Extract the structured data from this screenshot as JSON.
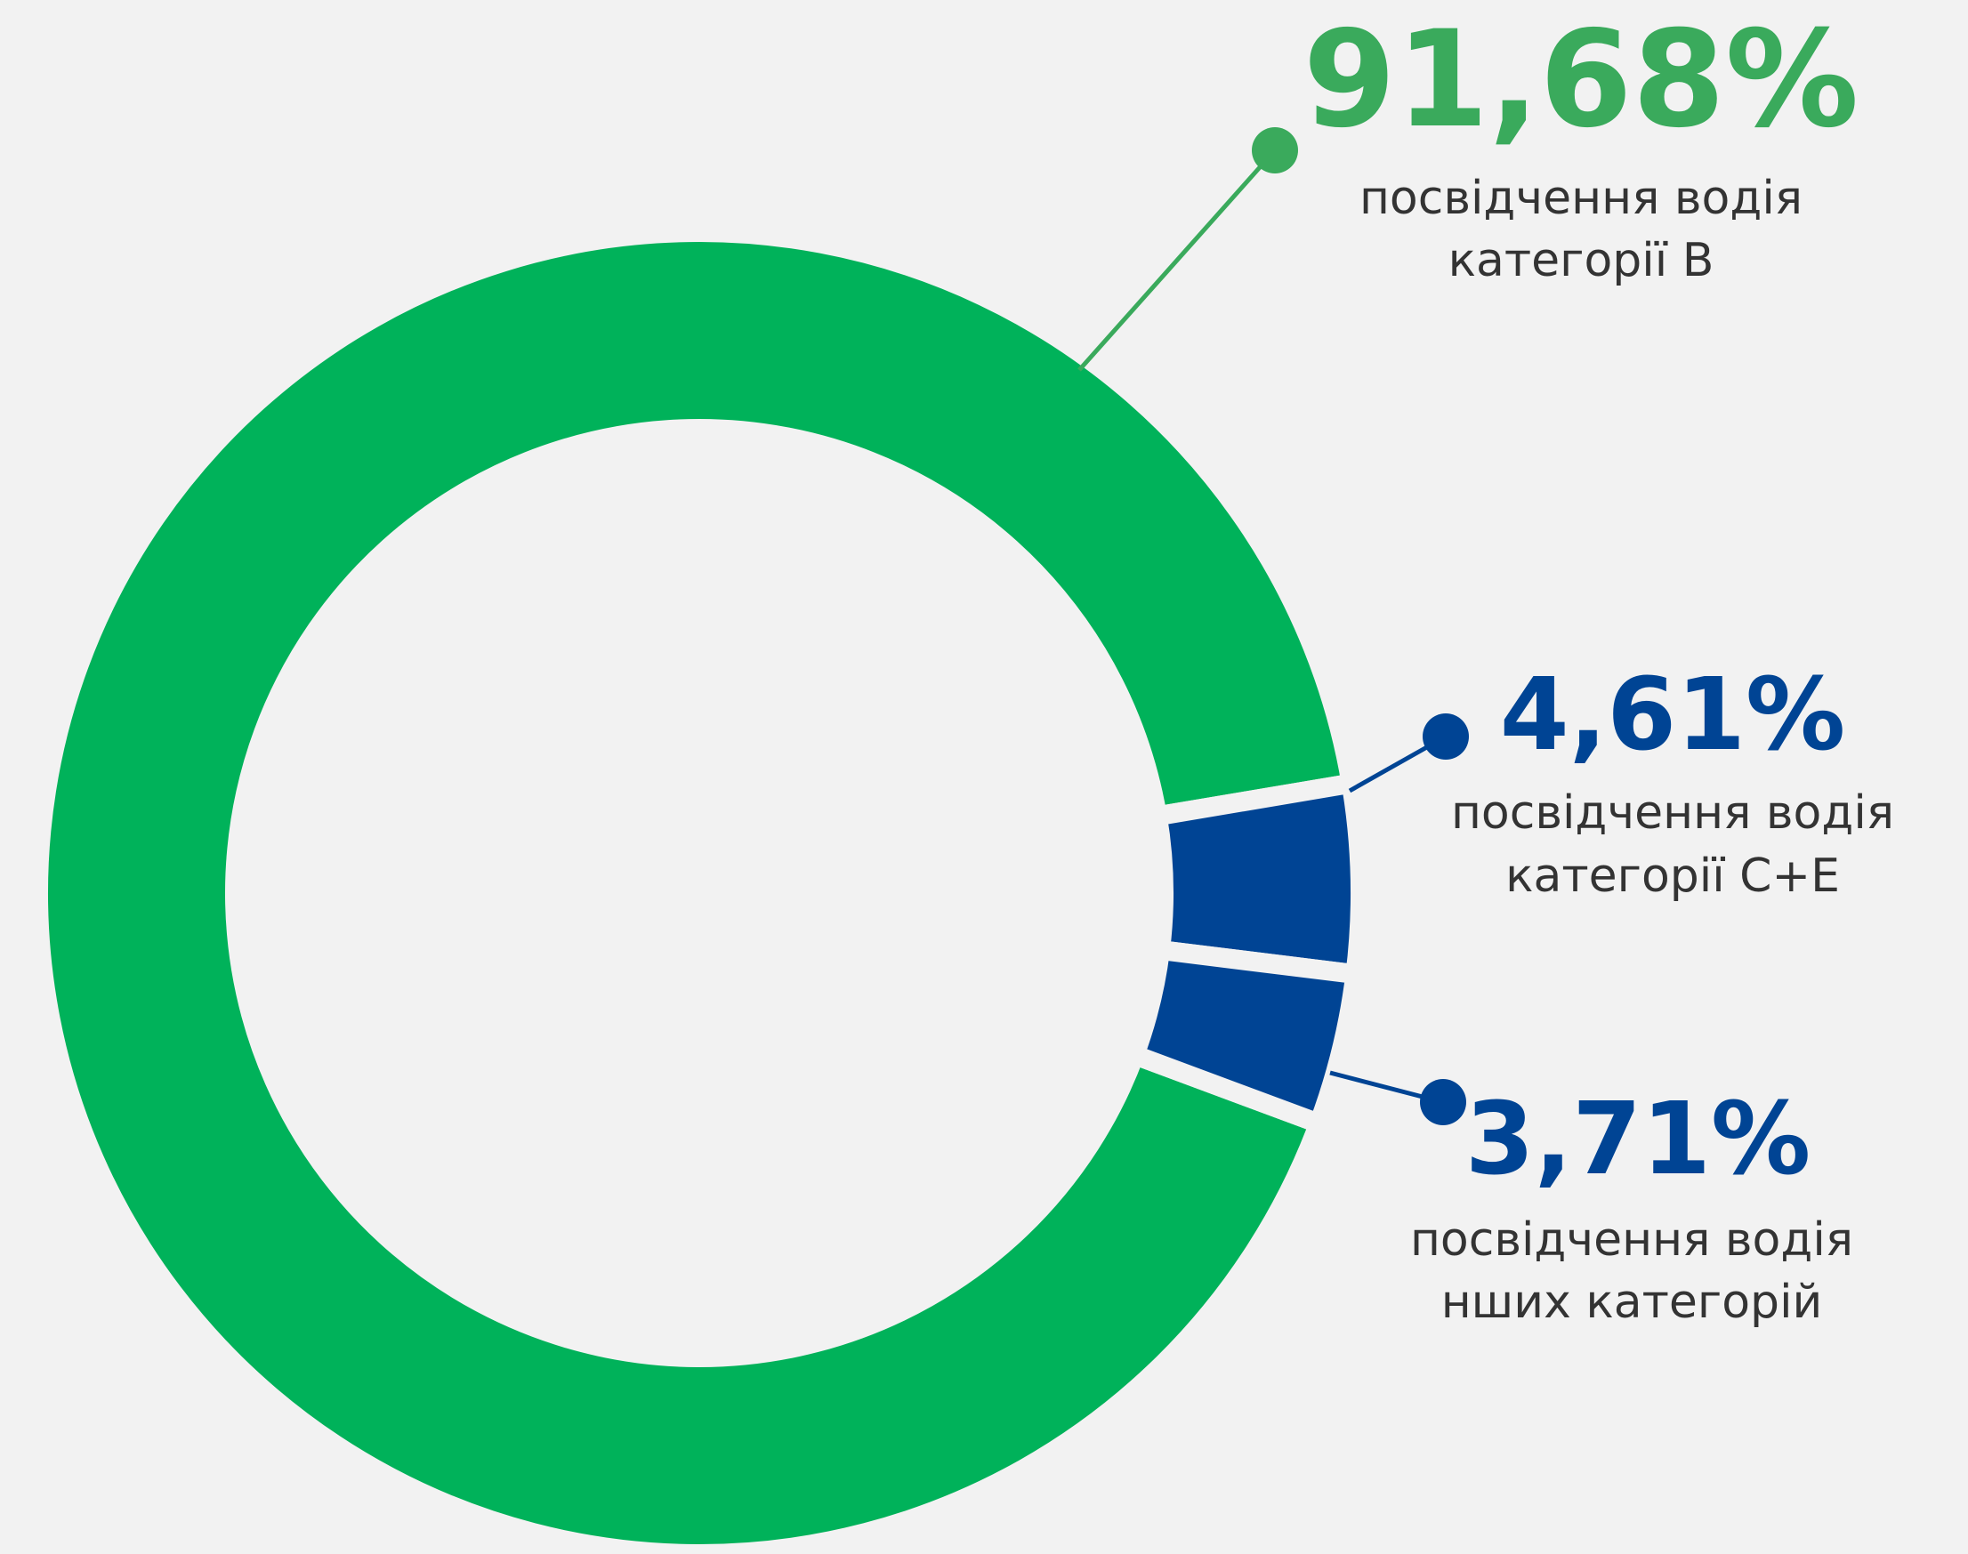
{
  "chart_data": {
    "type": "donut",
    "categories": [
      [
        "посвідчення водія",
        "категорії B"
      ],
      [
        "посвідчення водія",
        "категорії C+E"
      ],
      [
        "посвідчення водія",
        "нших категорій"
      ]
    ],
    "values": [
      91.68,
      4.61,
      3.71
    ],
    "value_labels": [
      "91,68%",
      "4,61%",
      "3,71%"
    ],
    "colors": [
      "#00b25a",
      "#004494",
      "#004494"
    ],
    "label_colors": [
      "#3aaa5c",
      "#004494",
      "#004494"
    ]
  }
}
